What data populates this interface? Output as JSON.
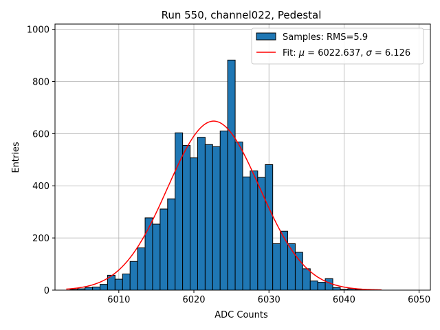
{
  "chart_data": {
    "type": "bar",
    "title": "Run 550, channel022, Pedestal",
    "xlabel": "ADC Counts",
    "ylabel": "Entries",
    "xlim": [
      6001.5,
      6051.5
    ],
    "ylim": [
      0,
      1020
    ],
    "xticks": [
      6010,
      6020,
      6030,
      6040,
      6050
    ],
    "yticks": [
      0,
      200,
      400,
      600,
      800,
      1000
    ],
    "grid": true,
    "legend_position": "top-right",
    "bar_color": "#1f77b4",
    "fit_color": "#ff0000",
    "histogram": {
      "name": "Samples: RMS=5.9",
      "bin_width": 1,
      "bins": [
        {
          "x": 6004,
          "value": 3
        },
        {
          "x": 6005,
          "value": 5
        },
        {
          "x": 6006,
          "value": 10
        },
        {
          "x": 6007,
          "value": 12
        },
        {
          "x": 6008,
          "value": 22
        },
        {
          "x": 6009,
          "value": 57
        },
        {
          "x": 6010,
          "value": 42
        },
        {
          "x": 6011,
          "value": 62
        },
        {
          "x": 6012,
          "value": 110
        },
        {
          "x": 6013,
          "value": 162
        },
        {
          "x": 6014,
          "value": 277
        },
        {
          "x": 6015,
          "value": 253
        },
        {
          "x": 6016,
          "value": 311
        },
        {
          "x": 6017,
          "value": 350
        },
        {
          "x": 6018,
          "value": 603
        },
        {
          "x": 6019,
          "value": 555
        },
        {
          "x": 6020,
          "value": 507
        },
        {
          "x": 6021,
          "value": 586
        },
        {
          "x": 6022,
          "value": 558
        },
        {
          "x": 6023,
          "value": 550
        },
        {
          "x": 6024,
          "value": 610
        },
        {
          "x": 6025,
          "value": 882
        },
        {
          "x": 6026,
          "value": 568
        },
        {
          "x": 6027,
          "value": 434
        },
        {
          "x": 6028,
          "value": 457
        },
        {
          "x": 6029,
          "value": 432
        },
        {
          "x": 6030,
          "value": 481
        },
        {
          "x": 6031,
          "value": 178
        },
        {
          "x": 6032,
          "value": 226
        },
        {
          "x": 6033,
          "value": 178
        },
        {
          "x": 6034,
          "value": 145
        },
        {
          "x": 6035,
          "value": 82
        },
        {
          "x": 6036,
          "value": 35
        },
        {
          "x": 6037,
          "value": 30
        },
        {
          "x": 6038,
          "value": 44
        },
        {
          "x": 6039,
          "value": 10
        },
        {
          "x": 6040,
          "value": 3
        },
        {
          "x": 6041,
          "value": 5
        },
        {
          "x": 6042,
          "value": 3
        },
        {
          "x": 6043,
          "value": 1
        }
      ]
    },
    "fit": {
      "name_prefix": "Fit: ",
      "name_mu_symbol": "μ",
      "name_sigma_symbol": "σ",
      "name_middle": " = 6022.637, ",
      "name_end": " = 6.126",
      "mu": 6022.637,
      "sigma": 6.126,
      "amplitude": 648,
      "x_range": [
        6003,
        6045
      ]
    }
  }
}
